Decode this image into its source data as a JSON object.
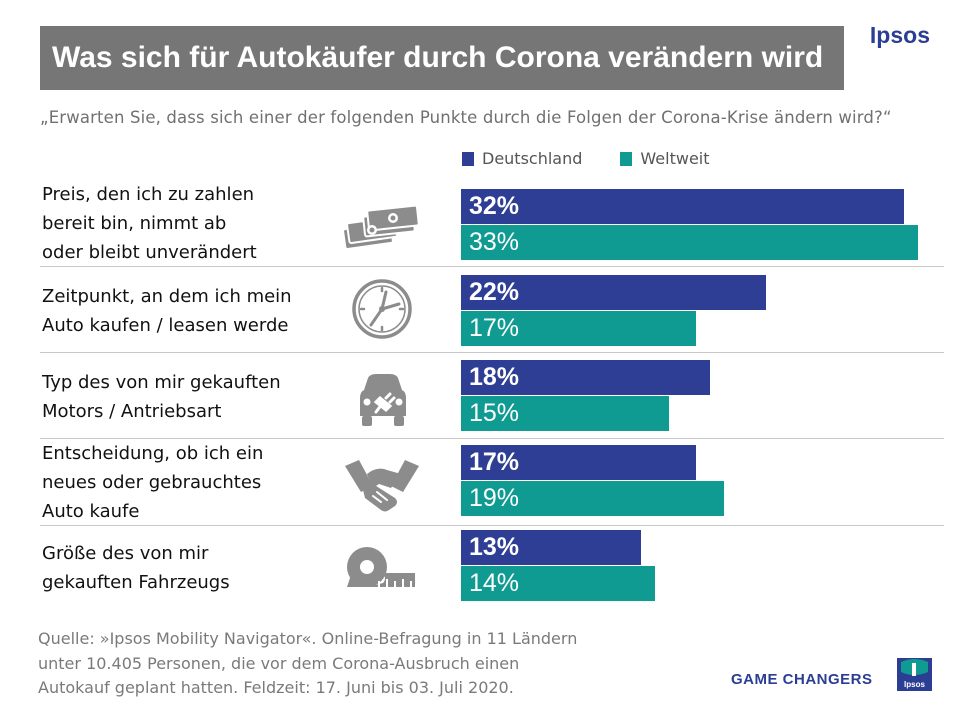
{
  "header": {
    "title": "Was sich für Autokäufer durch Corona verändern wird",
    "brand": "Ipsos",
    "question": "„Erwarten Sie, dass sich einer der folgenden Punkte durch die Folgen der Corona-Krise ändern wird?“"
  },
  "colors": {
    "deutschland": "#2e3e94",
    "weltweit": "#0f9b92",
    "icon": "#8c8c8c"
  },
  "chart_data": {
    "type": "bar",
    "orientation": "horizontal",
    "title": "Was sich für Autokäufer durch Corona verändern wird",
    "unit": "%",
    "xlim": [
      0,
      33
    ],
    "legend": [
      "Deutschland",
      "Weltweit"
    ],
    "categories": [
      "Preis, den ich zu zahlen\nbereit bin, nimmt ab\noder bleibt unverändert",
      "Zeitpunkt, an dem ich mein\nAuto kaufen / leasen werde",
      "Typ des von mir gekauften\nMotors / Antriebsart",
      "Entscheidung, ob ich ein\nneues oder gebrauchtes\nAuto kaufe",
      "Größe des von mir\ngekauften Fahrzeugs"
    ],
    "icons": [
      "money-icon",
      "clock-icon",
      "car-plug-icon",
      "handshake-icon",
      "tape-measure-icon"
    ],
    "series": [
      {
        "name": "Deutschland",
        "values": [
          32,
          22,
          18,
          17,
          13
        ],
        "labels": [
          "32%",
          "22%",
          "18%",
          "17%",
          "13%"
        ]
      },
      {
        "name": "Weltweit",
        "values": [
          33,
          17,
          15,
          19,
          14
        ],
        "labels": [
          "33%",
          "17%",
          "15%",
          "19%",
          "14%"
        ]
      }
    ]
  },
  "footer": {
    "source": "Quelle: »Ipsos Mobility Navigator«. Online-Befragung  in 11 Ländern\nunter 10.405 Personen, die vor dem Corona-Ausbruch  einen\nAutokauf geplant hatten. Feldzeit: 17. Juni bis 03. Juli 2020.",
    "tagline": "GAME CHANGERS",
    "logo_text": "Ipsos"
  }
}
